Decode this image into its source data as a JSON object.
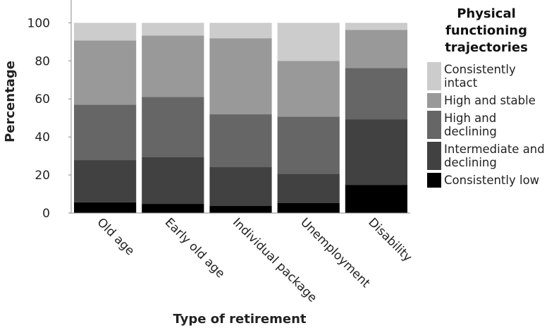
{
  "chart_data": {
    "type": "stacked-bar",
    "xlabel": "Type of retirement",
    "ylabel": "Percentage",
    "legend_title": "Physical functioning trajectories",
    "categories": [
      "Old age",
      "Early old age",
      "Individual package",
      "Unemployment",
      "Disability"
    ],
    "series": [
      {
        "name": "Consistently low",
        "color": "#000000",
        "values": [
          5.6,
          4.8,
          3.7,
          5.2,
          14.8
        ]
      },
      {
        "name": "Intermediate and declining",
        "color": "#414141",
        "values": [
          22.2,
          24.5,
          20.4,
          15.5,
          34.5
        ]
      },
      {
        "name": "High and declining",
        "color": "#666666",
        "values": [
          29.2,
          31.8,
          27.8,
          30.0,
          27.0
        ]
      },
      {
        "name": "High and stable",
        "color": "#999999",
        "values": [
          33.7,
          32.2,
          40.0,
          29.3,
          20.0
        ]
      },
      {
        "name": "Consistently intact",
        "color": "#cccccc",
        "values": [
          9.3,
          6.7,
          8.1,
          20.0,
          3.7
        ]
      }
    ],
    "ylim": [
      0,
      112
    ],
    "yticks": [
      0,
      20,
      40,
      60,
      80,
      100
    ],
    "legend_position": "right"
  }
}
